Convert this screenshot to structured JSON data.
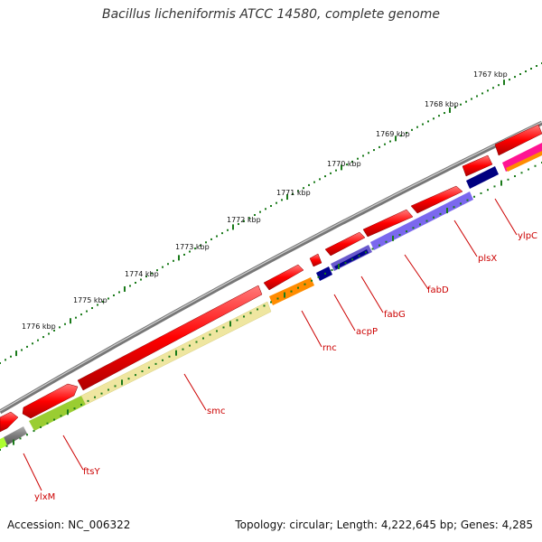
{
  "title": "Bacillus licheniformis ATCC 14580, complete genome",
  "accession": "Accession: NC_006322",
  "topology": "Topology: circular; Length: 4,222,645 bp; Genes: 4,285",
  "colors": {
    "backbone": "#808080",
    "tick_dots": "#1a7a1a",
    "label_red": "#cc0000",
    "cds": "#ff0000",
    "smc": "#efe6a0",
    "rnc": "#ff8c00",
    "acpP": "#00008b",
    "fabG": "#6a5acd",
    "fabD": "#7b68ee",
    "plsX": "#000080",
    "ylpC": "#ff1493",
    "ftsY": "#9acd32",
    "ylxM": "#696969"
  },
  "scale_labels": [
    "1767 kbp",
    "1768 kbp",
    "1769 kbp",
    "1770 kbp",
    "1771 kbp",
    "1772 kbp",
    "1773 kbp",
    "1774 kbp",
    "1775 kbp",
    "1776 kbp"
  ],
  "gene_labels": [
    "ylpC",
    "plsX",
    "fabD",
    "fabG",
    "acpP",
    "rnc",
    "smc",
    "ftsY",
    "ylxM"
  ]
}
